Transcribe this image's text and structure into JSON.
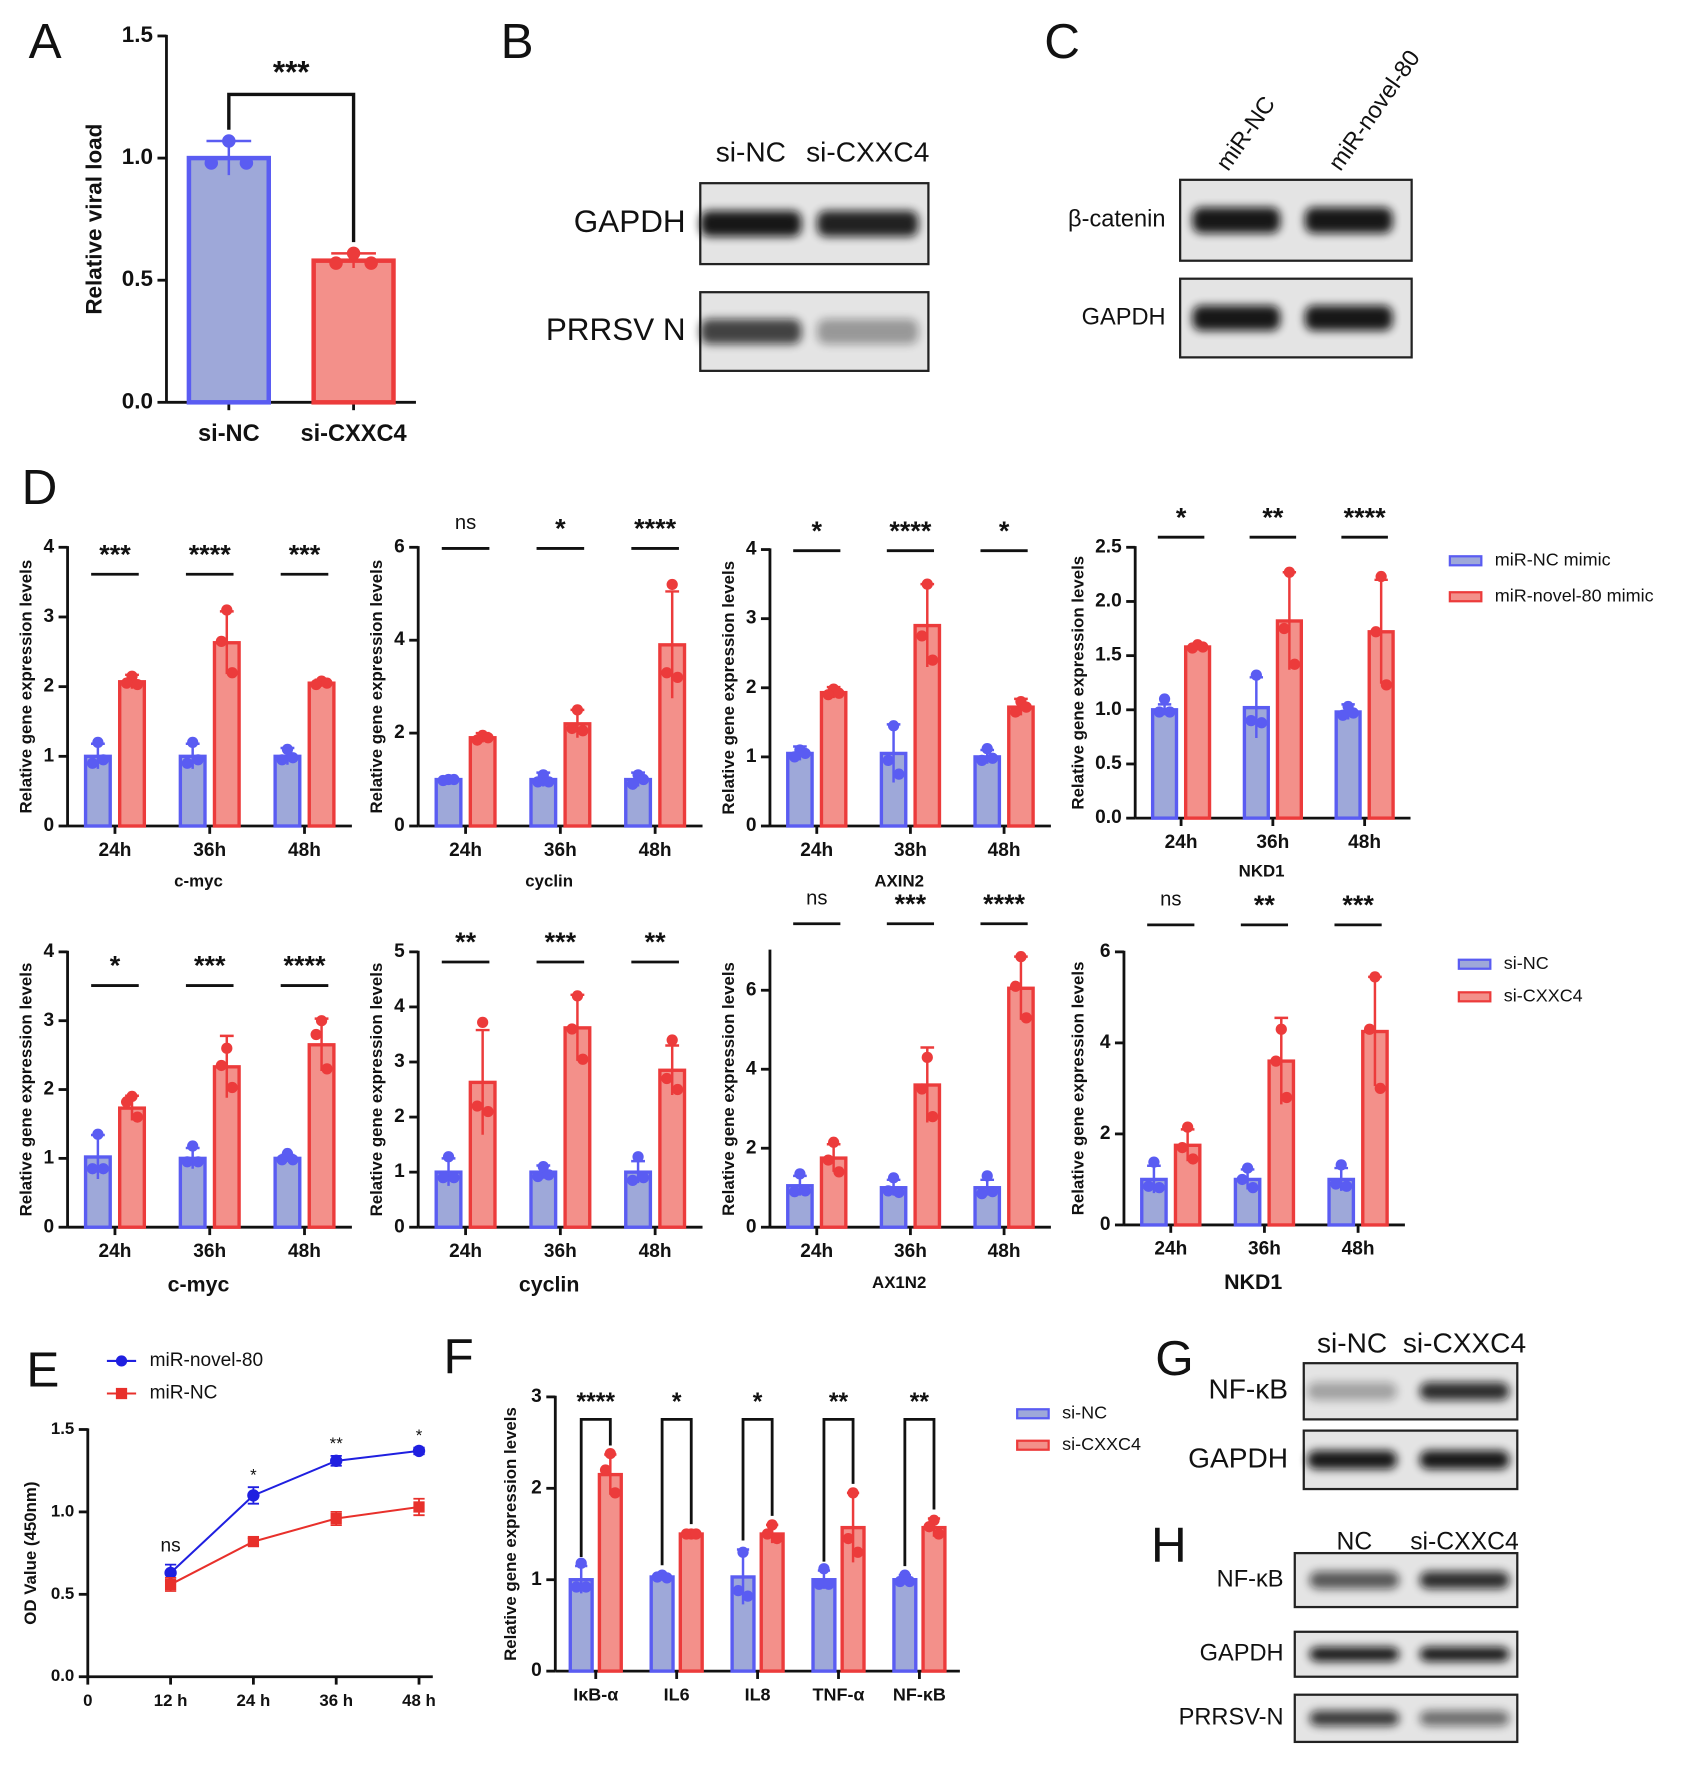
{
  "panel_labels": [
    "A",
    "B",
    "C",
    "D",
    "E",
    "F",
    "G",
    "H"
  ],
  "chart_data": [
    {
      "type": "bar",
      "ylabel": "Relative viral load",
      "categories": [
        "si-NC",
        "si-CXXC4"
      ],
      "values": [
        1.0,
        0.58
      ],
      "errors": [
        0.07,
        0.03
      ],
      "points": [
        [
          1.07,
          0.98,
          0.98
        ],
        [
          0.61,
          0.57,
          0.57
        ]
      ],
      "colors": [
        "#5a5cf2",
        "#ec3b3b"
      ],
      "fills": [
        "#9ea8d9",
        "#f3908a"
      ],
      "ylim": [
        0,
        1.5
      ],
      "yticks": [
        {
          "value": 0,
          "label": "0.0"
        },
        0.5,
        {
          "value": 1,
          "label": "1.0"
        },
        1.5
      ],
      "significance": "***",
      "significance_style": "bracket"
    },
    {
      "type": "bar",
      "ylabel": "Relative gene expression levels",
      "xlabel": "c-myc",
      "categories": [
        "24h",
        "36h",
        "48h"
      ],
      "ylim": [
        0,
        4
      ],
      "yticks": [
        0,
        1,
        2,
        3,
        4
      ],
      "significance": [
        "***",
        "****",
        "***"
      ],
      "significance_style": "line",
      "series": [
        {
          "color": "#5a5cf2",
          "fill": "#9ea8d9",
          "values": [
            1.0,
            1.0,
            1.0
          ],
          "errors": [
            0.18,
            0.18,
            0.12
          ],
          "points": [
            [
              1.2,
              0.9,
              0.95
            ],
            [
              1.2,
              0.9,
              0.95
            ],
            [
              1.1,
              0.95,
              0.98
            ]
          ]
        },
        {
          "color": "#ec3b3b",
          "fill": "#f3908a",
          "values": [
            2.07,
            2.63,
            2.05
          ],
          "errors": [
            0.1,
            0.45,
            0.05
          ],
          "points": [
            [
              2.15,
              2.05,
              2.03
            ],
            [
              3.1,
              2.65,
              2.2
            ],
            [
              2.08,
              2.03,
              2.05
            ]
          ]
        }
      ]
    },
    {
      "type": "bar",
      "ylabel": "Relative gene expression levels",
      "xlabel": "cyclin",
      "categories": [
        "24h",
        "36h",
        "48h"
      ],
      "ylim": [
        0,
        6
      ],
      "yticks": [
        0,
        2,
        4,
        6
      ],
      "significance": [
        "ns",
        "*",
        "****"
      ],
      "significance_style": "line",
      "series": [
        {
          "color": "#5a5cf2",
          "fill": "#9ea8d9",
          "values": [
            1.0,
            1.0,
            1.0
          ],
          "errors": [
            0.05,
            0.15,
            0.15
          ],
          "points": [
            [
              1.0,
              0.98,
              1.0
            ],
            [
              1.1,
              0.95,
              0.95
            ],
            [
              1.1,
              0.9,
              1.0
            ]
          ]
        },
        {
          "color": "#ec3b3b",
          "fill": "#f3908a",
          "values": [
            1.9,
            2.2,
            3.9
          ],
          "errors": [
            0.1,
            0.3,
            1.15
          ],
          "points": [
            [
              1.95,
              1.85,
              1.9
            ],
            [
              2.5,
              2.1,
              2.05
            ],
            [
              5.2,
              3.3,
              3.2
            ]
          ]
        }
      ]
    },
    {
      "type": "bar",
      "ylabel": "Relative gene expression levels",
      "xlabel": "AXIN2",
      "categories": [
        "24h",
        "38h",
        "48h"
      ],
      "ylim": [
        0,
        4
      ],
      "yticks": [
        0,
        1,
        2,
        3,
        4
      ],
      "significance": [
        "*",
        "****",
        "*"
      ],
      "significance_style": "line",
      "series": [
        {
          "color": "#5a5cf2",
          "fill": "#9ea8d9",
          "values": [
            1.05,
            1.05,
            1.0
          ],
          "errors": [
            0.1,
            0.42,
            0.1
          ],
          "points": [
            [
              1.1,
              1.0,
              1.05
            ],
            [
              1.45,
              0.95,
              0.75
            ],
            [
              1.12,
              0.95,
              0.98
            ]
          ]
        },
        {
          "color": "#ec3b3b",
          "fill": "#f3908a",
          "values": [
            1.93,
            2.9,
            1.72
          ],
          "errors": [
            0.08,
            0.6,
            0.12
          ],
          "points": [
            [
              1.98,
              1.9,
              1.92
            ],
            [
              3.5,
              2.75,
              2.4
            ],
            [
              1.8,
              1.65,
              1.72
            ]
          ]
        }
      ]
    },
    {
      "type": "bar",
      "ylabel": "Relative gene expression levels",
      "xlabel": "NKD1",
      "categories": [
        "24h",
        "36h",
        "48h"
      ],
      "ylim": [
        0,
        2.5
      ],
      "yticks": [
        {
          "value": 0,
          "label": "0.0"
        },
        0.5,
        {
          "value": 1,
          "label": "1.0"
        },
        1.5,
        {
          "value": 2,
          "label": "2.0"
        },
        2.5
      ],
      "significance": [
        "*",
        "**",
        "****"
      ],
      "significance_style": "line",
      "legend": true,
      "series": [
        {
          "name": "miR-NC mimic",
          "color": "#5a5cf2",
          "fill": "#9ea8d9",
          "values": [
            1.0,
            1.02,
            0.98
          ],
          "errors": [
            0.05,
            0.28,
            0.07
          ],
          "points": [
            [
              1.1,
              0.98,
              0.98
            ],
            [
              1.32,
              0.9,
              0.88
            ],
            [
              1.03,
              0.95,
              0.97
            ]
          ]
        },
        {
          "name": "miR-novel-80 mimic",
          "color": "#ec3b3b",
          "fill": "#f3908a",
          "values": [
            1.58,
            1.82,
            1.72
          ],
          "errors": [
            0.02,
            0.45,
            0.48
          ],
          "points": [
            [
              1.6,
              1.57,
              1.58
            ],
            [
              2.27,
              1.75,
              1.42
            ],
            [
              2.23,
              1.72,
              1.23
            ]
          ]
        }
      ]
    },
    {
      "type": "bar",
      "ylabel": "Relative gene expression levels",
      "xlabel": "c-myc",
      "categories": [
        "24h",
        "36h",
        "48h"
      ],
      "ylim": [
        0,
        4
      ],
      "yticks": [
        0,
        1,
        2,
        3,
        4
      ],
      "significance": [
        "*",
        "***",
        "****"
      ],
      "significance_style": "line",
      "series": [
        {
          "color": "#5a5cf2",
          "fill": "#9ea8d9",
          "values": [
            1.02,
            1.0,
            1.0
          ],
          "errors": [
            0.32,
            0.15,
            0.05
          ],
          "points": [
            [
              1.35,
              0.85,
              0.85
            ],
            [
              1.18,
              0.95,
              0.95
            ],
            [
              1.07,
              0.98,
              0.98
            ]
          ]
        },
        {
          "color": "#ec3b3b",
          "fill": "#f3908a",
          "values": [
            1.73,
            2.33,
            2.65
          ],
          "errors": [
            0.18,
            0.45,
            0.38
          ],
          "points": [
            [
              1.9,
              1.82,
              1.6
            ],
            [
              2.6,
              2.35,
              2.03
            ],
            [
              3.0,
              2.8,
              2.3
            ]
          ]
        }
      ]
    },
    {
      "type": "bar",
      "ylabel": "Relative gene expression levels",
      "xlabel": "cyclin",
      "categories": [
        "24h",
        "36h",
        "48h"
      ],
      "ylim": [
        0,
        5
      ],
      "yticks": [
        0,
        1,
        2,
        3,
        4,
        5
      ],
      "significance": [
        "**",
        "***",
        "**"
      ],
      "significance_style": "line",
      "series": [
        {
          "color": "#5a5cf2",
          "fill": "#9ea8d9",
          "values": [
            1.0,
            1.0,
            1.0
          ],
          "errors": [
            0.25,
            0.12,
            0.2
          ],
          "points": [
            [
              1.28,
              0.9,
              0.9
            ],
            [
              1.1,
              0.92,
              0.95
            ],
            [
              1.28,
              0.85,
              0.9
            ]
          ]
        },
        {
          "color": "#ec3b3b",
          "fill": "#f3908a",
          "values": [
            2.63,
            3.62,
            2.85
          ],
          "errors": [
            0.95,
            0.6,
            0.45
          ],
          "points": [
            [
              3.72,
              2.2,
              2.1
            ],
            [
              4.2,
              3.6,
              3.05
            ],
            [
              3.4,
              2.7,
              2.5
            ]
          ]
        }
      ]
    },
    {
      "type": "bar",
      "ylabel": "Relative gene expression levels",
      "xlabel": "AX1N2",
      "categories": [
        "24h",
        "36h",
        "48h"
      ],
      "ylim": [
        0,
        7
      ],
      "yticks": [
        0,
        2,
        4,
        6
      ],
      "significance": [
        "ns",
        "***",
        "****"
      ],
      "significance_style": "line",
      "series": [
        {
          "color": "#5a5cf2",
          "fill": "#9ea8d9",
          "values": [
            1.05,
            1.0,
            1.0
          ],
          "errors": [
            0.25,
            0.2,
            0.2
          ],
          "points": [
            [
              1.35,
              0.9,
              0.92
            ],
            [
              1.25,
              0.92,
              0.88
            ],
            [
              1.3,
              0.85,
              0.9
            ]
          ]
        },
        {
          "color": "#ec3b3b",
          "fill": "#f3908a",
          "values": [
            1.75,
            3.6,
            6.05
          ],
          "errors": [
            0.35,
            0.95,
            0.8
          ],
          "points": [
            [
              2.15,
              1.7,
              1.4
            ],
            [
              4.3,
              3.5,
              2.8
            ],
            [
              6.85,
              6.1,
              5.3
            ]
          ]
        }
      ]
    },
    {
      "type": "bar",
      "ylabel": "Relative gene expression levels",
      "xlabel": "NKD1",
      "categories": [
        "24h",
        "36h",
        "48h"
      ],
      "ylim": [
        0,
        6
      ],
      "yticks": [
        0,
        2,
        4,
        6
      ],
      "significance": [
        "ns",
        "**",
        "***"
      ],
      "significance_style": "line",
      "legend": true,
      "series": [
        {
          "name": "si-NC",
          "color": "#5a5cf2",
          "fill": "#9ea8d9",
          "values": [
            1.0,
            1.0,
            1.0
          ],
          "errors": [
            0.3,
            0.22,
            0.25
          ],
          "points": [
            [
              1.38,
              0.85,
              0.82
            ],
            [
              1.25,
              1.0,
              0.82
            ],
            [
              1.32,
              0.9,
              0.85
            ]
          ]
        },
        {
          "name": "si-CXXC4",
          "color": "#ec3b3b",
          "fill": "#f3908a",
          "values": [
            1.75,
            3.6,
            4.25
          ],
          "errors": [
            0.35,
            0.95,
            1.2
          ],
          "points": [
            [
              2.15,
              1.7,
              1.45
            ],
            [
              4.3,
              3.6,
              2.8
            ],
            [
              5.45,
              4.3,
              3.0
            ]
          ]
        }
      ]
    },
    {
      "type": "line",
      "ylabel": "OD Value (450nm)",
      "x": [
        12,
        24,
        36,
        48
      ],
      "xlim": [
        0,
        50
      ],
      "xticks": [
        0,
        {
          "value": 12,
          "label": "12 h"
        },
        {
          "value": 24,
          "label": "24 h"
        },
        {
          "value": 36,
          "label": "36 h"
        },
        {
          "value": 48,
          "label": "48 h"
        }
      ],
      "ylim": [
        0,
        1.5
      ],
      "yticks": [
        {
          "value": 0,
          "label": "0.0"
        },
        0.5,
        {
          "value": 1,
          "label": "1.0"
        },
        1.5
      ],
      "significance": [
        "ns",
        "*",
        "**",
        "*"
      ],
      "legend": true,
      "series": [
        {
          "name": "miR-novel-80",
          "color": "#1f1fe0",
          "marker": "circle",
          "values": [
            0.63,
            1.1,
            1.31,
            1.37
          ],
          "errors": [
            0.05,
            0.05,
            0.03,
            0.02
          ]
        },
        {
          "name": "miR-NC",
          "color": "#e8302b",
          "marker": "square",
          "values": [
            0.56,
            0.82,
            0.96,
            1.03
          ],
          "errors": [
            0.04,
            0.02,
            0.04,
            0.05
          ]
        }
      ]
    },
    {
      "type": "bar",
      "ylabel": "Relative gene expression levels",
      "categories": [
        "IκB-α",
        "IL6",
        "IL8",
        "TNF-α",
        "NF-κB"
      ],
      "ylim": [
        0,
        3
      ],
      "yticks": [
        0,
        1,
        2,
        3
      ],
      "significance": [
        "****",
        "*",
        "*",
        "**",
        "**"
      ],
      "significance_style": "bracket",
      "legend": true,
      "series": [
        {
          "name": "si-NC",
          "color": "#5a5cf2",
          "fill": "#9ea8d9",
          "values": [
            1.0,
            1.03,
            1.03,
            1.0,
            1.0
          ],
          "errors": [
            0.15,
            0.03,
            0.3,
            0.1,
            0.05
          ],
          "points": [
            [
              1.18,
              0.92,
              0.92
            ],
            [
              1.05,
              1.03,
              1.02
            ],
            [
              1.3,
              0.88,
              0.82
            ],
            [
              1.12,
              0.95,
              0.95
            ],
            [
              1.05,
              0.98,
              0.98
            ]
          ]
        },
        {
          "name": "si-CXXC4",
          "color": "#ec3b3b",
          "fill": "#f3908a",
          "values": [
            2.15,
            1.5,
            1.5,
            1.57,
            1.57
          ],
          "errors": [
            0.22,
            0.01,
            0.1,
            0.38,
            0.1
          ],
          "points": [
            [
              2.38,
              2.2,
              1.95
            ],
            [
              1.5,
              1.5,
              1.5
            ],
            [
              1.6,
              1.5,
              1.45
            ],
            [
              1.95,
              1.45,
              1.3
            ],
            [
              1.65,
              1.58,
              1.5
            ]
          ]
        }
      ]
    }
  ],
  "blots": [
    {
      "lanes": [
        "si-NC",
        "si-CXXC4"
      ],
      "rows": [
        "GAPDH",
        "PRRSV N"
      ]
    },
    {
      "lanes": [
        "miR-NC",
        "miR-novel-80"
      ],
      "rows": [
        "β-catenin",
        "GAPDH"
      ]
    },
    {
      "lanes": [
        "si-NC",
        "si-CXXC4"
      ],
      "rows": [
        "NF-κB",
        "GAPDH"
      ]
    },
    {
      "lanes": [
        "NC",
        "si-CXXC4"
      ],
      "rows": [
        "NF-κB",
        "GAPDH",
        "PRRSV-N"
      ]
    }
  ]
}
